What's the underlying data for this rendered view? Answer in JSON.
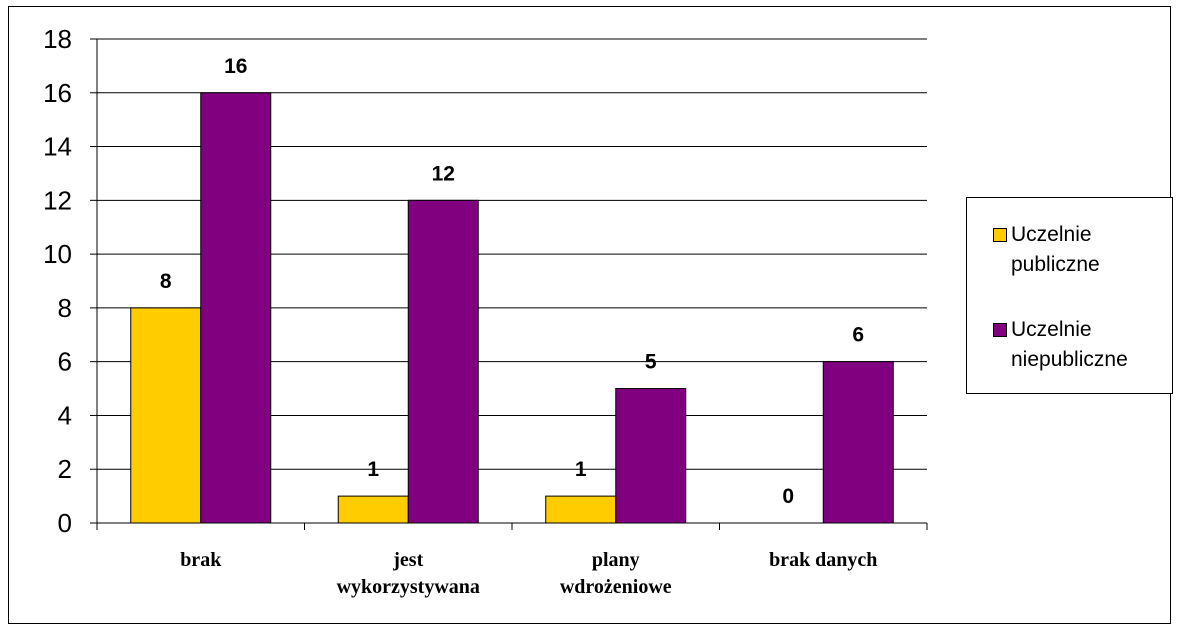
{
  "chart_data": {
    "type": "bar",
    "categories": [
      "brak",
      "jest wykorzystywana",
      "plany wdrożeniowe",
      "brak danych"
    ],
    "category_lines": [
      [
        "brak"
      ],
      [
        "jest",
        "wykorzystywana"
      ],
      [
        "plany",
        "wdrożeniowe"
      ],
      [
        "brak danych"
      ]
    ],
    "series": [
      {
        "name": "Uczelnie publiczne",
        "values": [
          8,
          1,
          1,
          0
        ],
        "color": "#FFCC00"
      },
      {
        "name": "Uczelnie niepubliczne",
        "values": [
          16,
          12,
          5,
          6
        ],
        "color": "#800080"
      }
    ],
    "ylim": [
      0,
      18
    ],
    "yticks": [
      0,
      2,
      4,
      6,
      8,
      10,
      12,
      14,
      16,
      18
    ],
    "grid": true,
    "legend_position": "right",
    "data_labels": true
  },
  "legend": {
    "item0_lines": [
      "Uczelnie",
      "publiczne"
    ],
    "item1_lines": [
      "Uczelnie",
      "niepubliczne"
    ]
  }
}
